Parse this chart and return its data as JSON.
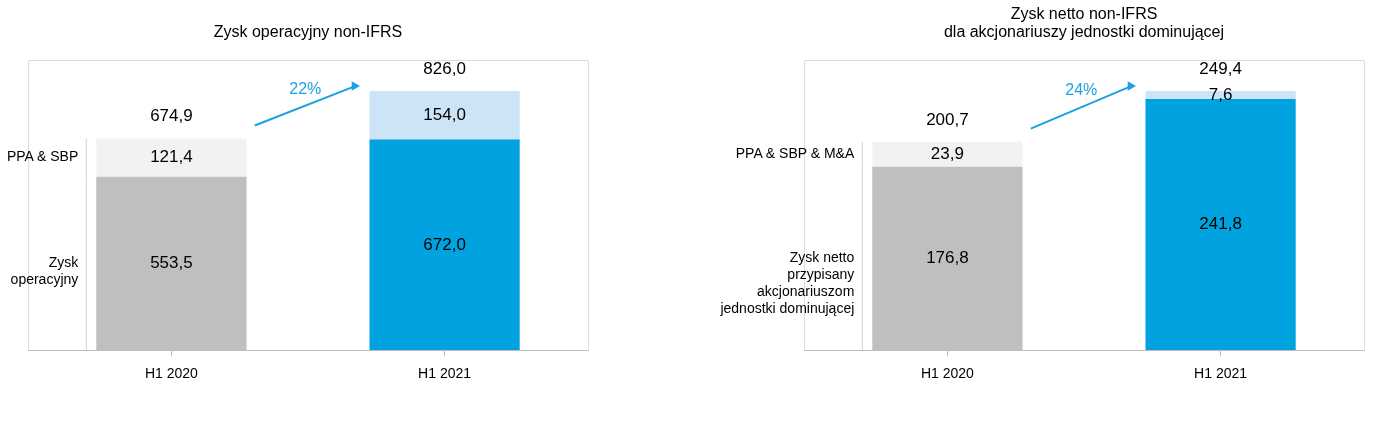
{
  "chart_data": [
    {
      "type": "bar",
      "title": "Zysk operacyjny non-IFRS",
      "categories": [
        "H1 2020",
        "H1 2021"
      ],
      "stacked": true,
      "series": [
        {
          "name": "Zysk\noperacyjny",
          "colors": [
            "#bfbfbf",
            "#00a3e0"
          ],
          "values": [
            553.5,
            672.0
          ],
          "value_labels": [
            "553,5",
            "672,0"
          ]
        },
        {
          "name": "PPA & SBP",
          "colors": [
            "#f2f2f2",
            "#cde3f6"
          ],
          "values": [
            121.4,
            154.0
          ],
          "value_labels": [
            "121,4",
            "154,0"
          ]
        }
      ],
      "totals": [
        "674,9",
        "826,0"
      ],
      "annotations": [
        "22%"
      ]
    },
    {
      "type": "bar",
      "title": "Zysk netto non-IFRS\ndla akcjonariuszy jednostki dominującej",
      "categories": [
        "H1 2020",
        "H1 2021"
      ],
      "stacked": true,
      "series": [
        {
          "name": "Zysk netto\nprzypisany\nakcjonariuszom\njednostki dominującej",
          "colors": [
            "#bfbfbf",
            "#00a3e0"
          ],
          "values": [
            176.8,
            241.8
          ],
          "value_labels": [
            "176,8",
            "241,8"
          ]
        },
        {
          "name": "PPA & SBP & M&A",
          "colors": [
            "#f2f2f2",
            "#cde3f6"
          ],
          "values": [
            23.9,
            7.6
          ],
          "value_labels": [
            "23,9",
            "7,6"
          ]
        }
      ],
      "totals": [
        "200,7",
        "249,4"
      ],
      "annotations": [
        "24%"
      ]
    }
  ]
}
